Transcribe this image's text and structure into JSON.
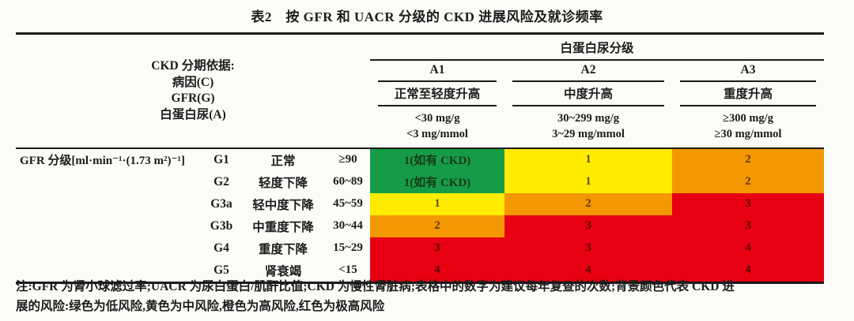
{
  "title": "表2　按 GFR 和 UACR 分级的 CKD 进展风险及就诊频率",
  "header": {
    "left_lines": [
      "CKD 分期依据:",
      "病因(C)",
      "GFR(G)",
      "白蛋白尿(A)"
    ],
    "albuminuria_title": "白蛋白尿分级",
    "columns": [
      {
        "code": "A1",
        "desc": "正常至轻度升高",
        "range1": "<30 mg/g",
        "range2": "<3 mg/mmol"
      },
      {
        "code": "A2",
        "desc": "中度升高",
        "range1": "30~299 mg/g",
        "range2": "3~29 mg/mmol"
      },
      {
        "code": "A3",
        "desc": "重度升高",
        "range1": "≥300 mg/g",
        "range2": "≥30 mg/mmol"
      }
    ]
  },
  "gfr": {
    "label": "GFR 分级[ml·min⁻¹·(1.73 m²)⁻¹]",
    "rows": [
      {
        "code": "G1",
        "desc": "正常",
        "range": "≥90",
        "cells": [
          {
            "text": "1(如有 CKD)",
            "risk": "green"
          },
          {
            "text": "1",
            "risk": "yellow"
          },
          {
            "text": "2",
            "risk": "orange"
          }
        ]
      },
      {
        "code": "G2",
        "desc": "轻度下降",
        "range": "60~89",
        "cells": [
          {
            "text": "1(如有 CKD)",
            "risk": "green"
          },
          {
            "text": "1",
            "risk": "yellow"
          },
          {
            "text": "2",
            "risk": "orange"
          }
        ]
      },
      {
        "code": "G3a",
        "desc": "轻中度下降",
        "range": "45~59",
        "cells": [
          {
            "text": "1",
            "risk": "yellow"
          },
          {
            "text": "2",
            "risk": "orange"
          },
          {
            "text": "3",
            "risk": "red"
          }
        ]
      },
      {
        "code": "G3b",
        "desc": "中重度下降",
        "range": "30~44",
        "cells": [
          {
            "text": "2",
            "risk": "orange"
          },
          {
            "text": "3",
            "risk": "red"
          },
          {
            "text": "3",
            "risk": "red"
          }
        ]
      },
      {
        "code": "G4",
        "desc": "重度下降",
        "range": "15~29",
        "cells": [
          {
            "text": "3",
            "risk": "red"
          },
          {
            "text": "3",
            "risk": "red"
          },
          {
            "text": "4",
            "risk": "red"
          }
        ]
      },
      {
        "code": "G5",
        "desc": "肾衰竭",
        "range": "<15",
        "cells": [
          {
            "text": "4",
            "risk": "red"
          },
          {
            "text": "4",
            "risk": "red"
          },
          {
            "text": "4",
            "risk": "red"
          }
        ]
      }
    ]
  },
  "risk_colors": {
    "green": "#169c47",
    "yellow": "#ffec00",
    "orange": "#f39800",
    "red": "#e60012"
  },
  "note": {
    "line1": "注:GFR 为肾小球滤过率;UACR 为尿白蛋白/肌酐比值;CKD 为慢性肾脏病;表格中的数字为建议每年复查的次数;背景颜色代表 CKD 进",
    "line2": "展的风险:绿色为低风险,黄色为中风险,橙色为高风险,红色为极高风险"
  }
}
